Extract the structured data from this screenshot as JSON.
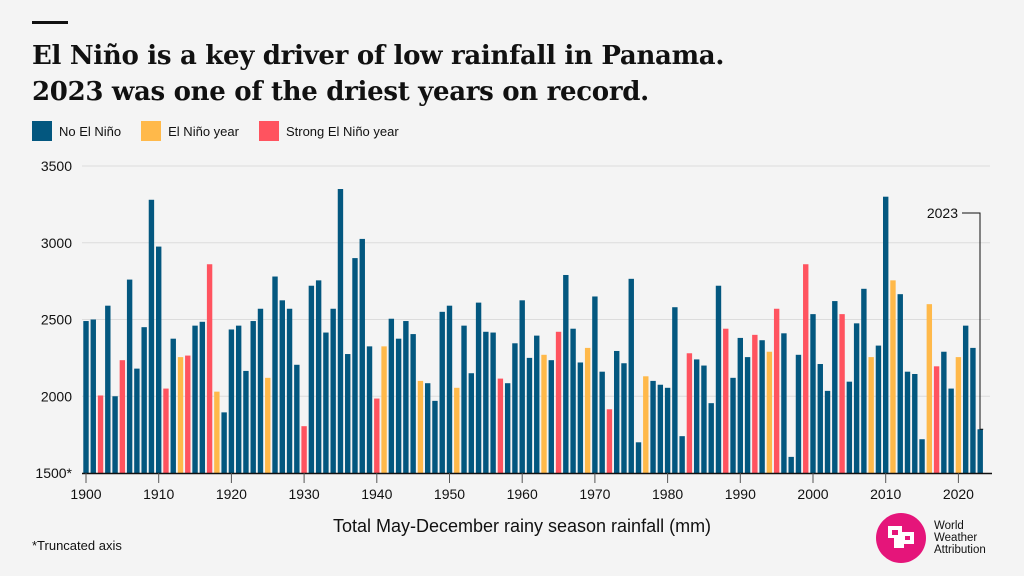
{
  "title_lines": [
    "El Niño is a key driver of low rainfall in Panama.",
    "2023 was one of the driest years on record."
  ],
  "legend": [
    {
      "label": "No El Niño",
      "color": "#03577f"
    },
    {
      "label": "El Niño year",
      "color": "#ffb94a"
    },
    {
      "label": "Strong El Niño year",
      "color": "#ff535f"
    }
  ],
  "footnote": "*Truncated axis",
  "logo": {
    "lines": [
      "World",
      "Weather",
      "Attribution"
    ],
    "color": "#e5157a"
  },
  "chart_data": {
    "type": "bar",
    "xlabel": "Total May-December rainy season rainfall (mm)",
    "ylabel": "",
    "ylim": [
      1500,
      3500
    ],
    "yticks": [
      1500,
      2000,
      2500,
      3000,
      3500
    ],
    "ytick_labels": [
      "1500*",
      "2000",
      "2500",
      "3000",
      "3500"
    ],
    "xticks": [
      1900,
      1910,
      1920,
      1930,
      1940,
      1950,
      1960,
      1970,
      1980,
      1990,
      2000,
      2010,
      2020
    ],
    "grid": true,
    "legend_position": "top-left",
    "annotation": {
      "label": "2023",
      "year": 2023
    },
    "start_year": 1900,
    "values": [
      2490,
      2500,
      2005,
      2590,
      2000,
      2235,
      2760,
      2180,
      2450,
      3280,
      2975,
      2050,
      2375,
      2255,
      2265,
      2460,
      2485,
      2860,
      2030,
      1895,
      2435,
      2460,
      2165,
      2490,
      2570,
      2120,
      2780,
      2625,
      2570,
      2205,
      1805,
      2720,
      2755,
      2415,
      2570,
      3350,
      2275,
      2900,
      3025,
      2325,
      1985,
      2325,
      2505,
      2375,
      2490,
      2405,
      2100,
      2085,
      1970,
      2550,
      2590,
      2055,
      2460,
      2150,
      2610,
      2420,
      2415,
      2115,
      2085,
      2345,
      2625,
      2250,
      2395,
      2270,
      2235,
      2420,
      2790,
      2440,
      2220,
      2315,
      2650,
      2160,
      1915,
      2295,
      2215,
      2765,
      1700,
      2130,
      2100,
      2075,
      2055,
      2580,
      1740,
      2280,
      2240,
      2200,
      1955,
      2720,
      2440,
      2120,
      2380,
      2255,
      2400,
      2365,
      2290,
      2570,
      2410,
      1605,
      2270,
      2860,
      2535,
      2210,
      2035,
      2620,
      2535,
      2095,
      2475,
      2700,
      2255,
      2330,
      3300,
      2755,
      2665,
      2160,
      2145,
      1720,
      2600,
      2195,
      2290,
      2050,
      2255,
      2460,
      2315,
      1785
    ],
    "category": "nnsnnsnnnnnsnysnnsyn nnnnnynnnnsnnnnnnnnn synnnnynnnnynnnnnsnnn nnynsnnnynnsnnnnynnn nnsnnnnsnnnsnysnnnsnn nnsnnnynnynnnnysnnynn nnns"
  }
}
